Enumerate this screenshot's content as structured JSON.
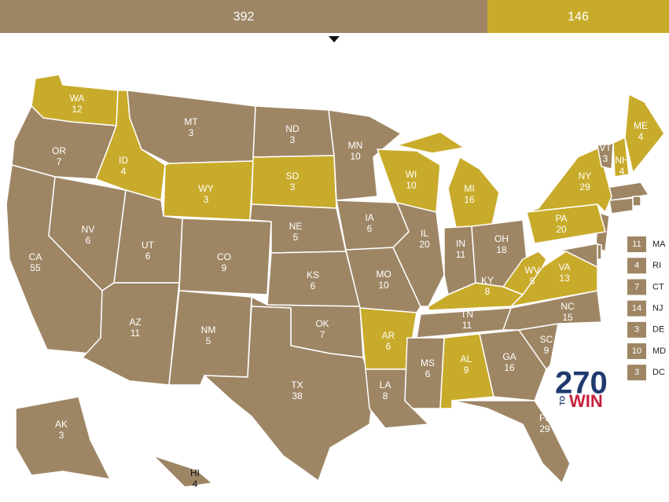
{
  "header": {
    "segments": [
      {
        "value": 392,
        "color": "#9e8665"
      },
      {
        "value": 146,
        "color": "#c9ab2b"
      }
    ]
  },
  "states": [
    {
      "abbr": "WA",
      "votes": 12,
      "color": "#c9ab2b"
    },
    {
      "abbr": "OR",
      "votes": 7,
      "color": "#9e8665"
    },
    {
      "abbr": "CA",
      "votes": 55,
      "color": "#9e8665"
    },
    {
      "abbr": "NV",
      "votes": 6,
      "color": "#9e8665"
    },
    {
      "abbr": "ID",
      "votes": 4,
      "color": "#c9ab2b"
    },
    {
      "abbr": "MT",
      "votes": 3,
      "color": "#9e8665"
    },
    {
      "abbr": "WY",
      "votes": 3,
      "color": "#c9ab2b"
    },
    {
      "abbr": "UT",
      "votes": 6,
      "color": "#9e8665"
    },
    {
      "abbr": "AZ",
      "votes": 11,
      "color": "#9e8665"
    },
    {
      "abbr": "CO",
      "votes": 9,
      "color": "#9e8665"
    },
    {
      "abbr": "NM",
      "votes": 5,
      "color": "#9e8665"
    },
    {
      "abbr": "ND",
      "votes": 3,
      "color": "#9e8665"
    },
    {
      "abbr": "SD",
      "votes": 3,
      "color": "#c9ab2b"
    },
    {
      "abbr": "NE",
      "votes": 5,
      "color": "#9e8665"
    },
    {
      "abbr": "KS",
      "votes": 6,
      "color": "#9e8665"
    },
    {
      "abbr": "OK",
      "votes": 7,
      "color": "#9e8665"
    },
    {
      "abbr": "TX",
      "votes": 38,
      "color": "#9e8665"
    },
    {
      "abbr": "MN",
      "votes": 10,
      "color": "#9e8665"
    },
    {
      "abbr": "IA",
      "votes": 6,
      "color": "#9e8665"
    },
    {
      "abbr": "MO",
      "votes": 10,
      "color": "#9e8665"
    },
    {
      "abbr": "AR",
      "votes": 6,
      "color": "#c9ab2b"
    },
    {
      "abbr": "LA",
      "votes": 8,
      "color": "#9e8665"
    },
    {
      "abbr": "WI",
      "votes": 10,
      "color": "#c9ab2b"
    },
    {
      "abbr": "IL",
      "votes": 20,
      "color": "#9e8665"
    },
    {
      "abbr": "MI",
      "votes": 16,
      "color": "#c9ab2b"
    },
    {
      "abbr": "IN",
      "votes": 11,
      "color": "#9e8665"
    },
    {
      "abbr": "OH",
      "votes": 18,
      "color": "#9e8665"
    },
    {
      "abbr": "KY",
      "votes": 8,
      "color": "#c9ab2b"
    },
    {
      "abbr": "TN",
      "votes": 11,
      "color": "#9e8665"
    },
    {
      "abbr": "MS",
      "votes": 6,
      "color": "#9e8665"
    },
    {
      "abbr": "AL",
      "votes": 9,
      "color": "#c9ab2b"
    },
    {
      "abbr": "GA",
      "votes": 16,
      "color": "#9e8665"
    },
    {
      "abbr": "FL",
      "votes": 29,
      "color": "#9e8665"
    },
    {
      "abbr": "SC",
      "votes": 9,
      "color": "#9e8665"
    },
    {
      "abbr": "NC",
      "votes": 15,
      "color": "#9e8665"
    },
    {
      "abbr": "VA",
      "votes": 13,
      "color": "#c9ab2b"
    },
    {
      "abbr": "WV",
      "votes": 5,
      "color": "#c9ab2b"
    },
    {
      "abbr": "PA",
      "votes": 20,
      "color": "#c9ab2b"
    },
    {
      "abbr": "NY",
      "votes": 29,
      "color": "#c9ab2b"
    },
    {
      "abbr": "VT",
      "votes": 3,
      "color": "#9e8665"
    },
    {
      "abbr": "NH",
      "votes": 4,
      "color": "#c9ab2b"
    },
    {
      "abbr": "ME",
      "votes": 4,
      "color": "#c9ab2b"
    },
    {
      "abbr": "AK",
      "votes": 3,
      "color": "#9e8665"
    },
    {
      "abbr": "HI",
      "votes": 4,
      "color": "#9e8665"
    }
  ],
  "small_states": [
    {
      "abbr": "MA",
      "votes": 11,
      "color": "#9e8665"
    },
    {
      "abbr": "RI",
      "votes": 4,
      "color": "#9e8665"
    },
    {
      "abbr": "CT",
      "votes": 7,
      "color": "#9e8665"
    },
    {
      "abbr": "NJ",
      "votes": 14,
      "color": "#9e8665"
    },
    {
      "abbr": "DE",
      "votes": 3,
      "color": "#9e8665"
    },
    {
      "abbr": "MD",
      "votes": 10,
      "color": "#9e8665"
    },
    {
      "abbr": "DC",
      "votes": 3,
      "color": "#9e8665"
    }
  ],
  "logo": {
    "number": "270",
    "to": "TO",
    "win": "WIN"
  }
}
